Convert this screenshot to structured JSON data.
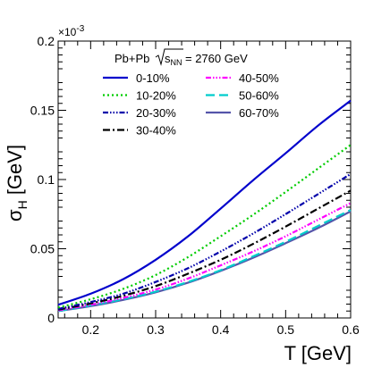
{
  "chart_data": {
    "type": "line",
    "title": "",
    "header_prefix": "Pb+Pb",
    "header_sqrt": "s",
    "header_sub": "NN",
    "header_suffix": "= 2760 GeV",
    "xlabel": "T [GeV]",
    "ylabel_main": "σ",
    "ylabel_sub": "H",
    "ylabel_unit": " [GeV]",
    "y_scale_base": "×10",
    "y_scale_exp": "-3",
    "xlim": [
      0.15,
      0.6
    ],
    "ylim": [
      0,
      0.2
    ],
    "xticks": [
      0.2,
      0.3,
      0.4,
      0.5,
      0.6
    ],
    "xtick_labels": [
      "0.2",
      "0.3",
      "0.4",
      "0.5",
      "0.6"
    ],
    "yticks": [
      0,
      0.05,
      0.1,
      0.15,
      0.2
    ],
    "ytick_labels": [
      "0",
      "0.05",
      "0.1",
      "0.15",
      "0.2"
    ],
    "grid": false,
    "legend_position": "top",
    "x": [
      0.15,
      0.2,
      0.25,
      0.3,
      0.35,
      0.4,
      0.45,
      0.5,
      0.55,
      0.6
    ],
    "series": [
      {
        "name": "0-10%",
        "color": "#0000cc",
        "dash": "solid",
        "values": [
          0.0095,
          0.0175,
          0.028,
          0.042,
          0.059,
          0.079,
          0.0995,
          0.119,
          0.139,
          0.157
        ]
      },
      {
        "name": "10-20%",
        "color": "#00cc00",
        "dash": "dotted",
        "values": [
          0.0075,
          0.0135,
          0.021,
          0.031,
          0.044,
          0.059,
          0.0745,
          0.091,
          0.108,
          0.125
        ]
      },
      {
        "name": "20-30%",
        "color": "#0000aa",
        "dash": "dashdot3",
        "values": [
          0.0065,
          0.0115,
          0.0175,
          0.026,
          0.036,
          0.048,
          0.061,
          0.075,
          0.0895,
          0.104
        ]
      },
      {
        "name": "30-40%",
        "color": "#000000",
        "dash": "dashdot",
        "values": [
          0.006,
          0.0105,
          0.016,
          0.023,
          0.032,
          0.042,
          0.0535,
          0.066,
          0.079,
          0.092
        ]
      },
      {
        "name": "40-50%",
        "color": "#ff00ff",
        "dash": "dashdot3",
        "values": [
          0.0055,
          0.0095,
          0.0145,
          0.0205,
          0.0285,
          0.038,
          0.048,
          0.059,
          0.071,
          0.083
        ]
      },
      {
        "name": "50-60%",
        "color": "#00cccc",
        "dash": "dashed",
        "values": [
          0.005,
          0.009,
          0.0135,
          0.019,
          0.026,
          0.0345,
          0.0445,
          0.055,
          0.0665,
          0.078
        ]
      },
      {
        "name": "60-70%",
        "color": "#5555aa",
        "dash": "solid",
        "values": [
          0.005,
          0.0085,
          0.013,
          0.0185,
          0.0255,
          0.034,
          0.0435,
          0.054,
          0.065,
          0.077
        ]
      }
    ]
  }
}
